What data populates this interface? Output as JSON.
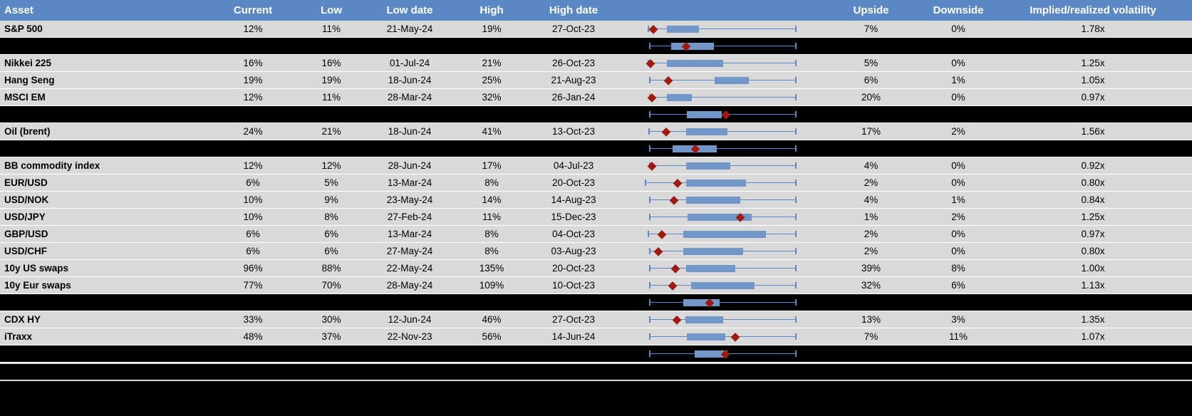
{
  "colors": {
    "header_bg": "#5b87c5",
    "header_text": "#ffffff",
    "row_bg": "#d9d9d9",
    "separator_bg": "#000000",
    "box_fill": "#7296c8",
    "whisker": "#5b87c5",
    "marker": "#a01a10",
    "text": "#000000"
  },
  "chart_data": {
    "type": "table",
    "subtype": "table-with-range-boxplots",
    "columns": [
      "Asset",
      "Current",
      "Low",
      "Low date",
      "High",
      "High date",
      "",
      "Upside",
      "Downside",
      "Implied/realized volatility"
    ],
    "boxplot_note": "box values are fractions of the plot width: w=whisker range, b=box range, m=red diamond marker position",
    "rows": [
      {
        "type": "data",
        "asset": "S&P 500",
        "current": "12%",
        "low": "11%",
        "low_date": "21-May-24",
        "high": "19%",
        "high_date": "27-Oct-23",
        "upside": "7%",
        "downside": "0%",
        "vol": "1.78x",
        "box": {
          "w": [
            0.02,
            0.99
          ],
          "b": [
            0.145,
            0.355
          ],
          "m": 0.055
        }
      },
      {
        "type": "summary",
        "box": {
          "w": [
            0.03,
            0.99
          ],
          "b": [
            0.17,
            0.45
          ],
          "m": 0.27
        }
      },
      {
        "type": "data",
        "asset": "Nikkei 225",
        "current": "16%",
        "low": "16%",
        "low_date": "01-Jul-24",
        "high": "21%",
        "high_date": "26-Oct-23",
        "upside": "5%",
        "downside": "0%",
        "vol": "1.25x",
        "box": {
          "w": [
            0.02,
            0.99
          ],
          "b": [
            0.145,
            0.51
          ],
          "m": 0.035
        }
      },
      {
        "type": "data",
        "asset": "Hang Seng",
        "current": "19%",
        "low": "19%",
        "low_date": "18-Jun-24",
        "high": "25%",
        "high_date": "21-Aug-23",
        "upside": "6%",
        "downside": "1%",
        "vol": "1.05x",
        "box": {
          "w": [
            0.03,
            0.99
          ],
          "b": [
            0.455,
            0.68
          ],
          "m": 0.155
        }
      },
      {
        "type": "data",
        "asset": "MSCI EM",
        "current": "12%",
        "low": "11%",
        "low_date": "28-Mar-24",
        "high": "32%",
        "high_date": "26-Jan-24",
        "upside": "20%",
        "downside": "0%",
        "vol": "0.97x",
        "box": {
          "w": [
            0.03,
            0.99
          ],
          "b": [
            0.145,
            0.305
          ],
          "m": 0.045
        }
      },
      {
        "type": "summary",
        "box": {
          "w": [
            0.03,
            0.99
          ],
          "b": [
            0.275,
            0.5
          ],
          "m": 0.53
        }
      },
      {
        "type": "data",
        "asset": "Oil (brent)",
        "current": "24%",
        "low": "21%",
        "low_date": "18-Jun-24",
        "high": "41%",
        "high_date": "13-Oct-23",
        "upside": "17%",
        "downside": "2%",
        "vol": "1.56x",
        "box": {
          "w": [
            0.025,
            0.99
          ],
          "b": [
            0.27,
            0.54
          ],
          "m": 0.14
        }
      },
      {
        "type": "summary",
        "box": {
          "w": [
            0.03,
            0.99
          ],
          "b": [
            0.18,
            0.47
          ],
          "m": 0.33
        }
      },
      {
        "type": "data",
        "asset": "BB commodity index",
        "current": "12%",
        "low": "12%",
        "low_date": "28-Jun-24",
        "high": "17%",
        "high_date": "04-Jul-23",
        "upside": "4%",
        "downside": "0%",
        "vol": "0.92x",
        "box": {
          "w": [
            0.03,
            0.99
          ],
          "b": [
            0.27,
            0.56
          ],
          "m": 0.045
        }
      },
      {
        "type": "data",
        "asset": "EUR/USD",
        "current": "6%",
        "low": "5%",
        "low_date": "13-Mar-24",
        "high": "8%",
        "high_date": "20-Oct-23",
        "upside": "2%",
        "downside": "0%",
        "vol": "0.80x",
        "box": {
          "w": [
            0.0,
            0.99
          ],
          "b": [
            0.27,
            0.66
          ],
          "m": 0.215
        }
      },
      {
        "type": "data",
        "asset": "USD/NOK",
        "current": "10%",
        "low": "9%",
        "low_date": "23-May-24",
        "high": "14%",
        "high_date": "14-Aug-23",
        "upside": "4%",
        "downside": "1%",
        "vol": "0.84x",
        "box": {
          "w": [
            0.03,
            0.99
          ],
          "b": [
            0.27,
            0.625
          ],
          "m": 0.19
        }
      },
      {
        "type": "data",
        "asset": "USD/JPY",
        "current": "10%",
        "low": "8%",
        "low_date": "27-Feb-24",
        "high": "11%",
        "high_date": "15-Dec-23",
        "upside": "1%",
        "downside": "2%",
        "vol": "1.25x",
        "box": {
          "w": [
            0.03,
            0.99
          ],
          "b": [
            0.28,
            0.7
          ],
          "m": 0.625
        }
      },
      {
        "type": "data",
        "asset": "GBP/USD",
        "current": "6%",
        "low": "6%",
        "low_date": "13-Mar-24",
        "high": "8%",
        "high_date": "04-Oct-23",
        "upside": "2%",
        "downside": "0%",
        "vol": "0.97x",
        "box": {
          "w": [
            0.02,
            0.99
          ],
          "b": [
            0.25,
            0.79
          ],
          "m": 0.11
        }
      },
      {
        "type": "data",
        "asset": "USD/CHF",
        "current": "6%",
        "low": "6%",
        "low_date": "27-May-24",
        "high": "8%",
        "high_date": "03-Aug-23",
        "upside": "2%",
        "downside": "0%",
        "vol": "0.80x",
        "box": {
          "w": [
            0.03,
            0.99
          ],
          "b": [
            0.25,
            0.64
          ],
          "m": 0.09
        }
      },
      {
        "type": "data",
        "asset": "10y US swaps",
        "current": "96%",
        "low": "88%",
        "low_date": "22-May-24",
        "high": "135%",
        "high_date": "20-Oct-23",
        "upside": "39%",
        "downside": "8%",
        "vol": "1.00x",
        "box": {
          "w": [
            0.03,
            0.99
          ],
          "b": [
            0.27,
            0.59
          ],
          "m": 0.2
        }
      },
      {
        "type": "data",
        "asset": "10y Eur swaps",
        "current": "77%",
        "low": "70%",
        "low_date": "28-May-24",
        "high": "109%",
        "high_date": "10-Oct-23",
        "upside": "32%",
        "downside": "6%",
        "vol": "1.13x",
        "box": {
          "w": [
            0.03,
            0.99
          ],
          "b": [
            0.3,
            0.715
          ],
          "m": 0.18
        }
      },
      {
        "type": "summary",
        "box": {
          "w": [
            0.03,
            0.99
          ],
          "b": [
            0.25,
            0.49
          ],
          "m": 0.425
        }
      },
      {
        "type": "data",
        "asset": "CDX HY",
        "current": "33%",
        "low": "30%",
        "low_date": "12-Jun-24",
        "high": "46%",
        "high_date": "27-Oct-23",
        "upside": "13%",
        "downside": "3%",
        "vol": "1.35x",
        "box": {
          "w": [
            0.03,
            0.99
          ],
          "b": [
            0.265,
            0.51
          ],
          "m": 0.21
        }
      },
      {
        "type": "data",
        "asset": "iTraxx",
        "current": "48%",
        "low": "37%",
        "low_date": "22-Nov-23",
        "high": "56%",
        "high_date": "14-Jun-24",
        "upside": "7%",
        "downside": "11%",
        "vol": "1.07x",
        "box": {
          "w": [
            0.03,
            0.99
          ],
          "b": [
            0.275,
            0.525
          ],
          "m": 0.59
        }
      },
      {
        "type": "summary",
        "box": {
          "w": [
            0.03,
            0.99
          ],
          "b": [
            0.325,
            0.54
          ],
          "m": 0.525
        }
      }
    ]
  }
}
